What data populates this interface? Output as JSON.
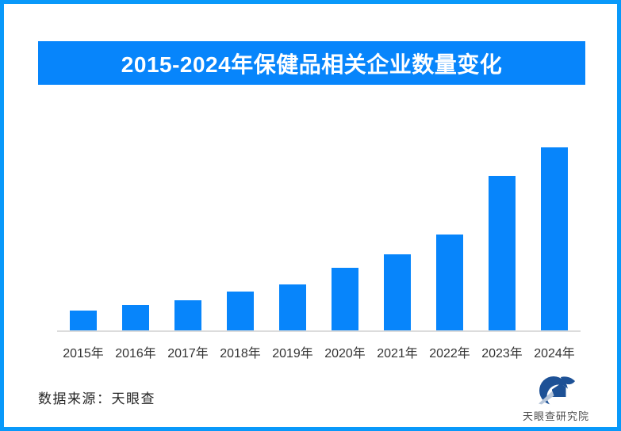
{
  "page": {
    "border_color": "#0999fa",
    "background": "#ffffff"
  },
  "header": {
    "title": "2015-2024年保健品相关企业数量变化",
    "bg_color": "#0785fb",
    "text_color": "#ffffff"
  },
  "chart_data": {
    "type": "bar",
    "title": "2015-2024年保健品相关企业数量变化",
    "categories": [
      "2015年",
      "2016年",
      "2017年",
      "2018年",
      "2019年",
      "2020年",
      "2021年",
      "2022年",
      "2023年",
      "2024年"
    ],
    "values": [
      11,
      13.7,
      16.6,
      21.1,
      25,
      34.1,
      41.4,
      52.5,
      84.4,
      100
    ],
    "values_note": "relative bar heights, max bar = 100; chart shows no numeric axis or data labels",
    "xlabel": "",
    "ylabel": "",
    "bar_color": "#0785fb",
    "axis_line_color": "#dcdcdc",
    "grid": false,
    "legend": false,
    "value_axis_visible": false
  },
  "footer": {
    "source_label": "数据来源：天眼查"
  },
  "logo": {
    "text": "天眼查研究院",
    "mark_primary_color": "#1d5196",
    "mark_accent_color": "#b7c6da",
    "text_color": "#4f4f4f"
  }
}
